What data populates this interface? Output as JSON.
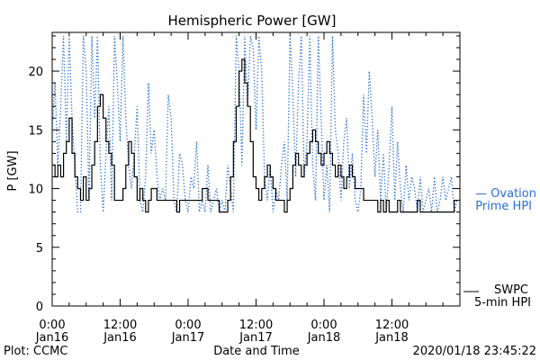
{
  "chart_data": {
    "type": "line",
    "title": "Hemispheric Power [GW]",
    "ylabel": "P [GW]",
    "xlabel": "Date and Time",
    "ylim": [
      0,
      23.3
    ],
    "xlim_hours": [
      0,
      72
    ],
    "yticks": [
      0,
      5,
      10,
      15,
      20
    ],
    "xticks": [
      {
        "h": 0,
        "line1": "0:00",
        "line2": "Jan16"
      },
      {
        "h": 12,
        "line1": "12:00",
        "line2": "Jan16"
      },
      {
        "h": 24,
        "line1": "0:00",
        "line2": "Jan17"
      },
      {
        "h": 36,
        "line1": "12:00",
        "line2": "Jan17"
      },
      {
        "h": 48,
        "line1": "0:00",
        "line2": "Jan18"
      },
      {
        "h": 60,
        "line1": "12:00",
        "line2": "Jan18"
      }
    ],
    "series": [
      {
        "name": "Ovation Prime HPI",
        "legend_line1": "— Ovation",
        "legend_line2": "Prime HPI",
        "color": "#2a6fd6",
        "style": "dotted",
        "x": [
          0,
          0.5,
          1,
          1.5,
          2,
          2.5,
          3,
          3.5,
          4,
          4.5,
          5,
          5.5,
          6,
          6.5,
          7,
          7.5,
          8,
          8.5,
          9,
          9.5,
          10,
          10.5,
          11,
          11.5,
          12,
          12.5,
          13,
          13.5,
          14,
          14.5,
          15,
          15.5,
          16,
          16.5,
          17,
          17.5,
          18,
          18.5,
          19,
          19.5,
          20,
          20.5,
          21,
          21.5,
          22,
          22.5,
          23,
          23.5,
          24,
          24.5,
          25,
          25.5,
          26,
          26.5,
          27,
          27.5,
          28,
          28.5,
          29,
          29.5,
          30,
          30.5,
          31,
          31.5,
          32,
          32.5,
          33,
          33.5,
          34,
          34.5,
          35,
          35.5,
          36,
          36.5,
          37,
          37.5,
          38,
          38.5,
          39,
          39.5,
          40,
          40.5,
          41,
          41.5,
          42,
          42.5,
          43,
          43.5,
          44,
          44.5,
          45,
          45.5,
          46,
          46.5,
          47,
          47.5,
          48,
          48.5,
          49,
          49.5,
          50,
          50.5,
          51,
          51.5,
          52,
          52.5,
          53,
          53.5,
          54,
          54.5,
          55,
          55.5,
          56,
          56.5,
          57,
          57.5,
          58,
          58.5,
          59,
          59.5,
          60,
          60.5,
          61,
          61.5,
          62,
          62.5,
          63,
          63.5,
          64,
          64.5,
          65,
          65.5,
          66,
          66.5,
          67,
          67.5,
          68,
          68.5,
          69,
          69.5,
          70,
          70.5,
          71,
          71.5
        ],
        "values": [
          15,
          19,
          12,
          17,
          23,
          14,
          23,
          16,
          12,
          8,
          8,
          23,
          20,
          9,
          23,
          16,
          23,
          12,
          8,
          13,
          17,
          9,
          23,
          19,
          14,
          23,
          16,
          12,
          10,
          13,
          17,
          9,
          8,
          11,
          19,
          13,
          15,
          11,
          9,
          10,
          9,
          18,
          16,
          9,
          8,
          13,
          12,
          9,
          8,
          11,
          10,
          14,
          8,
          9,
          8,
          12,
          8,
          9,
          10,
          8,
          9,
          8,
          12,
          10,
          8,
          23,
          20,
          12,
          23,
          17,
          23,
          22,
          15,
          23,
          20,
          11,
          9,
          12,
          8,
          10,
          9,
          12,
          14,
          9,
          23,
          18,
          11,
          19,
          23,
          11,
          14,
          23,
          12,
          9,
          23,
          16,
          9,
          12,
          8,
          23,
          15,
          13,
          9,
          14,
          16,
          10,
          13,
          9,
          8,
          10,
          18,
          13,
          20,
          16,
          11,
          15,
          9,
          13,
          8,
          12,
          17,
          9,
          14,
          10,
          8,
          12,
          9,
          11,
          10,
          8,
          11,
          8,
          9,
          10,
          8,
          11,
          8,
          9,
          11,
          9,
          10,
          11,
          8,
          9
        ]
      },
      {
        "name": "SWPC 5-min HPI",
        "legend_line1": "SWPC",
        "legend_line2": "5-min HPI",
        "color": "#000000",
        "style": "solid",
        "x": [
          0,
          0.5,
          1,
          1.5,
          2,
          2.5,
          3,
          3.5,
          4,
          4.5,
          5,
          5.5,
          6,
          6.5,
          7,
          7.5,
          8,
          8.5,
          9,
          9.5,
          10,
          10.5,
          11,
          11.5,
          12,
          12.5,
          13,
          13.5,
          14,
          14.5,
          15,
          15.5,
          16,
          16.5,
          17,
          17.5,
          18,
          18.5,
          19,
          19.5,
          20,
          20.5,
          21,
          21.5,
          22,
          22.5,
          23,
          23.5,
          24,
          24.5,
          25,
          25.5,
          26,
          26.5,
          27,
          27.5,
          28,
          28.5,
          29,
          29.5,
          30,
          30.5,
          31,
          31.5,
          32,
          32.5,
          33,
          33.5,
          34,
          34.5,
          35,
          35.5,
          36,
          36.5,
          37,
          37.5,
          38,
          38.5,
          39,
          39.5,
          40,
          40.5,
          41,
          41.5,
          42,
          42.5,
          43,
          43.5,
          44,
          44.5,
          45,
          45.5,
          46,
          46.5,
          47,
          47.5,
          48,
          48.5,
          49,
          49.5,
          50,
          50.5,
          51,
          51.5,
          52,
          52.5,
          53,
          53.5,
          54,
          54.5,
          55,
          55.5,
          56,
          56.5,
          57,
          57.5,
          58,
          58.5,
          59,
          59.5,
          60,
          60.5,
          61,
          61.5,
          62,
          62.5,
          63,
          63.5,
          64,
          64.5,
          65,
          65.5,
          66,
          66.5,
          67,
          67.5,
          68,
          68.5,
          69,
          69.5,
          70,
          70.5,
          71,
          71.5
        ],
        "values": [
          12,
          11,
          12,
          11,
          13,
          14,
          16,
          13,
          11,
          10,
          9,
          11,
          9,
          10,
          12,
          14,
          17,
          18,
          16,
          14,
          13,
          12,
          9,
          9,
          9,
          10,
          12,
          14,
          13,
          11,
          9,
          10,
          9,
          8,
          9,
          10,
          10,
          9,
          9,
          9,
          9,
          9,
          9,
          9,
          8,
          9,
          9,
          9,
          9,
          9,
          9,
          9,
          9,
          10,
          10,
          9,
          9,
          9,
          9,
          8,
          8,
          8,
          9,
          11,
          14,
          17,
          20,
          21,
          19,
          17,
          14,
          11,
          10,
          9,
          10,
          11,
          12,
          11,
          10,
          9,
          9,
          9,
          8,
          9,
          10,
          12,
          13,
          12,
          11,
          12,
          13,
          14,
          15,
          14,
          13,
          12,
          13,
          14,
          13,
          12,
          11,
          12,
          11,
          10,
          11,
          12,
          11,
          10,
          10,
          10,
          9,
          9,
          9,
          9,
          9,
          8,
          9,
          8,
          9,
          8,
          8,
          8,
          9,
          8,
          8,
          8,
          8,
          8,
          8,
          9,
          8,
          8,
          8,
          8,
          8,
          8,
          8,
          8,
          8,
          8,
          8,
          8,
          9,
          9
        ]
      }
    ]
  },
  "footer": {
    "left": "Plot: CCMC",
    "right": "2020/01/18 23:45:22"
  }
}
